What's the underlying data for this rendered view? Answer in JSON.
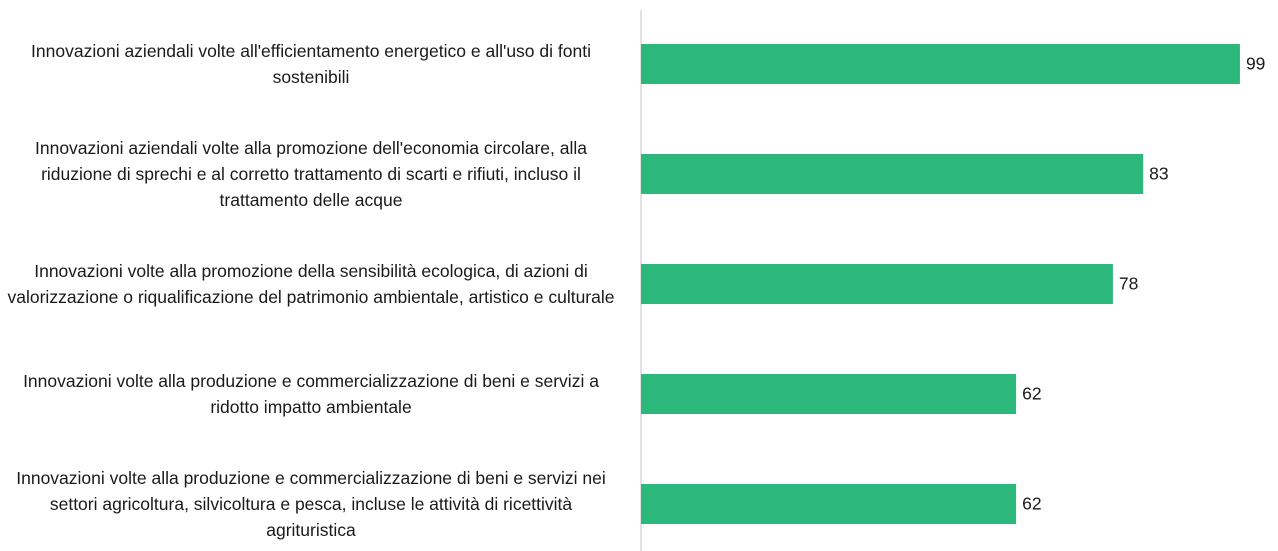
{
  "chart_data": {
    "type": "barh",
    "categories": [
      "Innovazioni aziendali volte all'efficientamento energetico e all'uso di fonti sostenibili",
      "Innovazioni aziendali volte alla promozione dell'economia circolare, alla riduzione di sprechi e al corretto trattamento di scarti e rifiuti, incluso il trattamento delle acque",
      "Innovazioni volte alla promozione della sensibilità ecologica, di azioni di valorizzazione o riqualificazione del patrimonio ambientale, artistico e culturale",
      "Innovazioni volte alla produzione e commercializzazione di beni e servizi a ridotto impatto ambientale",
      "Innovazioni volte alla produzione e commercializzazione di beni e servizi nei settori agricoltura, silvicoltura e pesca, incluse le attività di ricettività agrituristica"
    ],
    "values": [
      99,
      83,
      78,
      62,
      62
    ],
    "color": "#2bb87a",
    "xlim": [
      0,
      100
    ]
  }
}
